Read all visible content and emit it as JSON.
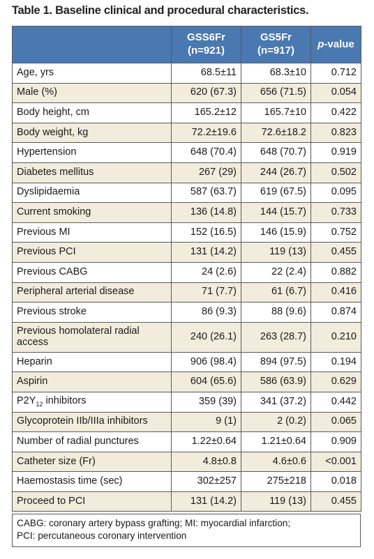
{
  "title": "Table 1. Baseline clinical and procedural characteristics.",
  "headers": {
    "col1_line1": "GSS6Fr",
    "col1_line2": "(n=921)",
    "col2_line1": "GS5Fr",
    "col2_line2": "(n=917)",
    "pvalue_italic": "p",
    "pvalue_rest": "-value"
  },
  "rows": [
    {
      "label": "Age, yrs",
      "a": "68.5±11",
      "b": "68.3±10",
      "p": "0.712"
    },
    {
      "label": "Male (%)",
      "a": "620 (67.3)",
      "b": "656 (71.5)",
      "p": "0.054"
    },
    {
      "label": "Body height, cm",
      "a": "165.2±12",
      "b": "165.7±10",
      "p": "0.422"
    },
    {
      "label": "Body weight, kg",
      "a": "72.2±19.6",
      "b": "72.6±18.2",
      "p": "0.823"
    },
    {
      "label": "Hypertension",
      "a": "648 (70.4)",
      "b": "648 (70.7)",
      "p": "0.919"
    },
    {
      "label": "Diabetes mellitus",
      "a": "267 (29)",
      "b": "244 (26.7)",
      "p": "0.502"
    },
    {
      "label": "Dyslipidaemia",
      "a": "587 (63.7)",
      "b": "619 (67.5)",
      "p": "0.095"
    },
    {
      "label": "Current smoking",
      "a": "136 (14.8)",
      "b": "144 (15.7)",
      "p": "0.733"
    },
    {
      "label": "Previous MI",
      "a": "152 (16.5)",
      "b": "146 (15.9)",
      "p": "0.752"
    },
    {
      "label": "Previous PCI",
      "a": "131 (14.2)",
      "b": "119 (13)",
      "p": "0.455"
    },
    {
      "label": "Previous CABG",
      "a": "24 (2.6)",
      "b": "22 (2.4)",
      "p": "0.882"
    },
    {
      "label": "Peripheral arterial disease",
      "a": "71 (7.7)",
      "b": "61 (6.7)",
      "p": "0.416"
    },
    {
      "label": "Previous stroke",
      "a": "86 (9.3)",
      "b": "88 (9.6)",
      "p": "0.874"
    },
    {
      "label": "Previous homolateral radial access",
      "a": "240 (26.1)",
      "b": "263 (28.7)",
      "p": "0.210"
    },
    {
      "label": "Heparin",
      "a": "906 (98.4)",
      "b": "894 (97.5)",
      "p": "0.194"
    },
    {
      "label": "Aspirin",
      "a": "604 (65.6)",
      "b": "586 (63.9)",
      "p": "0.629"
    },
    {
      "label_main": "P2Y",
      "label_sub": "12",
      "label_tail": " inhibitors",
      "a": "359 (39)",
      "b": "341 (37.2)",
      "p": "0.442"
    },
    {
      "label": "Glycoprotein IIb/IIIa inhibitors",
      "a": "9 (1)",
      "b": "2 (0.2)",
      "p": "0.065"
    },
    {
      "label": "Number of radial punctures",
      "a": "1.22±0.64",
      "b": "1.21±0.64",
      "p": "0.909"
    },
    {
      "label": "Catheter size (Fr)",
      "a": "4.8±0.8",
      "b": "4.6±0.6",
      "p": "<0.001"
    },
    {
      "label": "Haemostasis time (sec)",
      "a": "302±257",
      "b": "275±218",
      "p": "0.018"
    },
    {
      "label": "Proceed to PCI",
      "a": "131 (14.2)",
      "b": "119 (13)",
      "p": "0.455"
    }
  ],
  "footnote": {
    "line1": "CABG: coronary artery bypass grafting; MI: myocardial infarction;",
    "line2": "PCI: percutaneous coronary intervention"
  },
  "colors": {
    "header_bg": "#4a78b0",
    "stripe_bg": "#f1ecdc",
    "border": "#5a5a5a"
  }
}
